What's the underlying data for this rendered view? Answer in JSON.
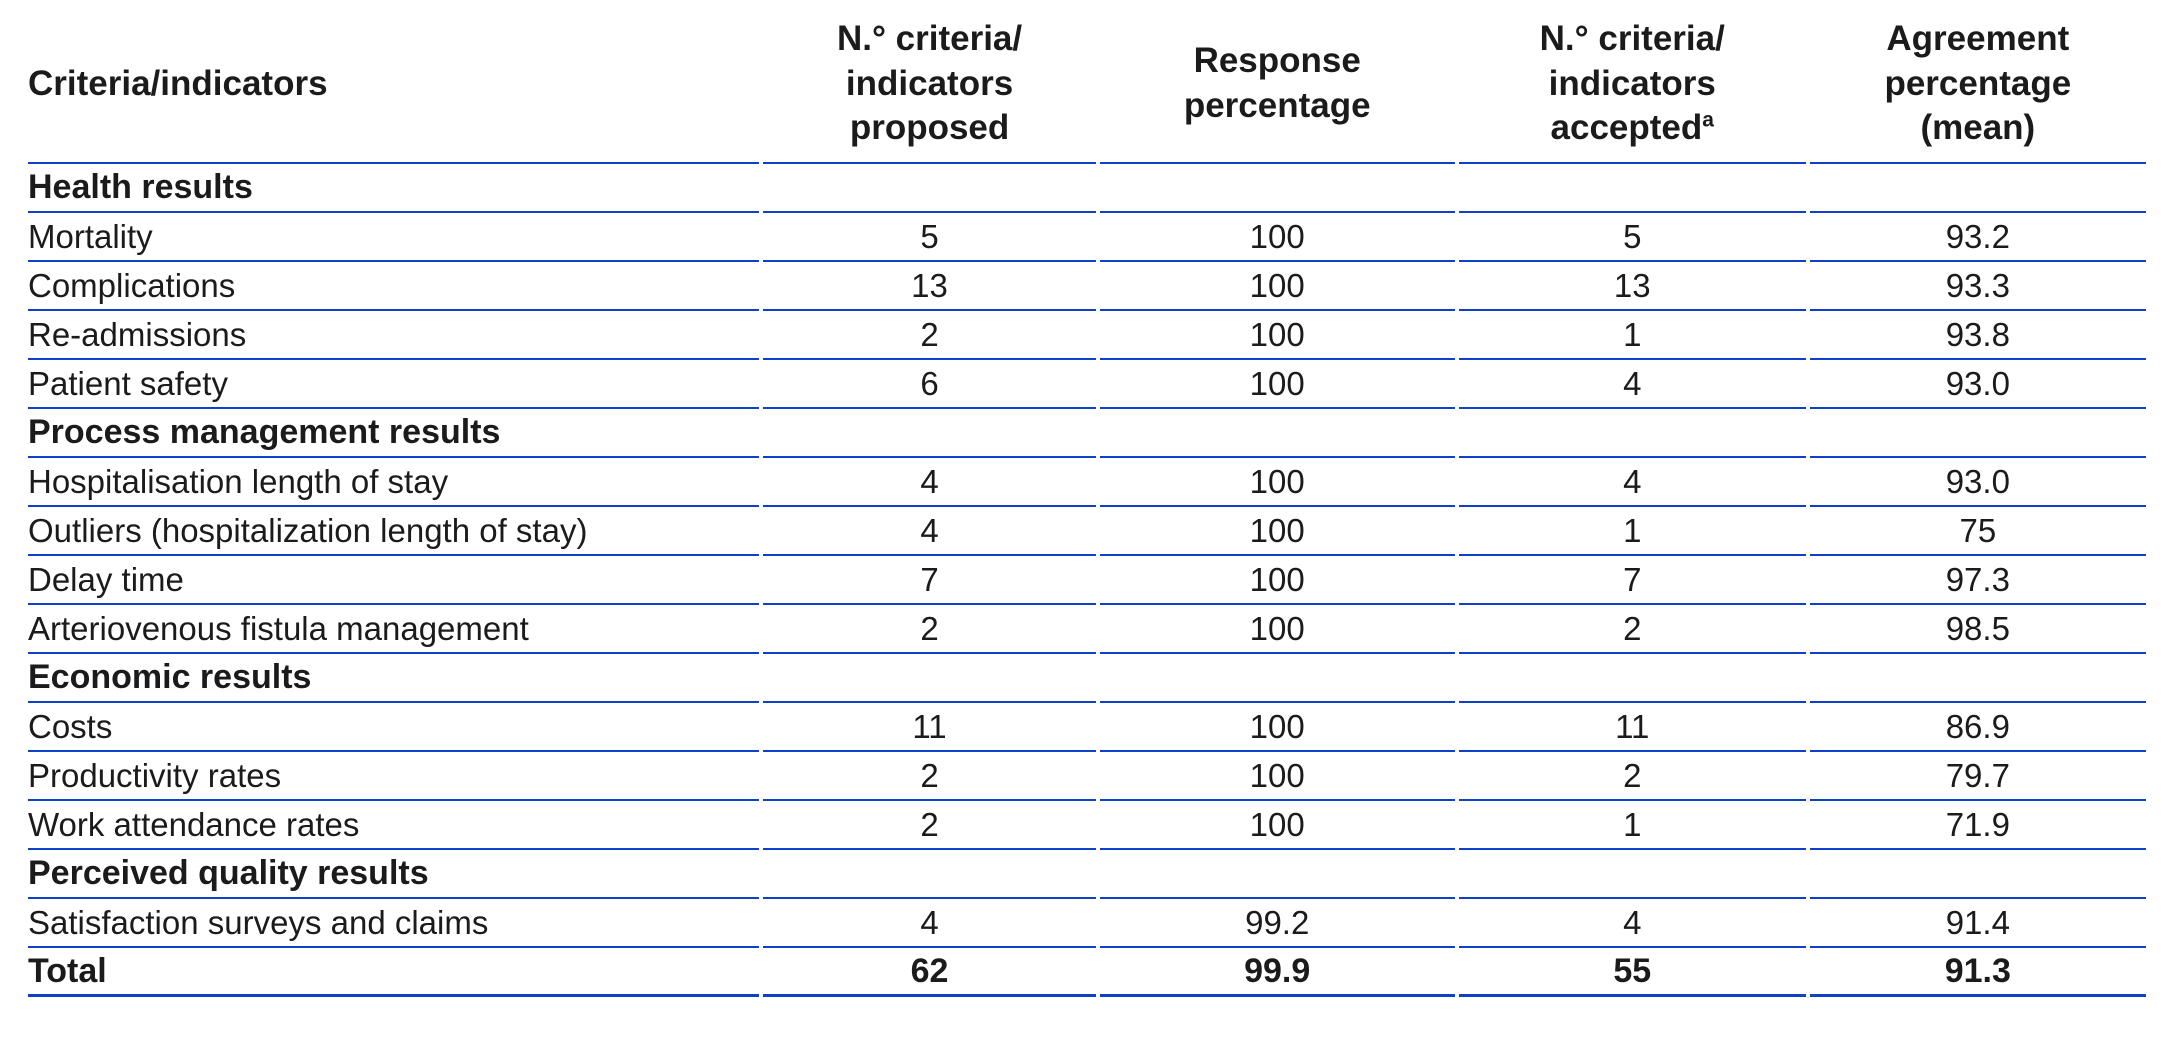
{
  "table": {
    "columns": [
      {
        "label": "Criteria/indicators"
      },
      {
        "label": "N.° criteria/\nindicators\nproposed"
      },
      {
        "label": "Response\npercentage"
      },
      {
        "label": "N.° criteria/\nindicators\naccepted",
        "sup": "a"
      },
      {
        "label": "Agreement\npercentage\n(mean)"
      }
    ],
    "rows": [
      {
        "type": "section",
        "label": "Health results"
      },
      {
        "type": "data",
        "label": "Mortality",
        "proposed": "5",
        "response": "100",
        "accepted": "5",
        "agreement": "93.2"
      },
      {
        "type": "data",
        "label": "Complications",
        "proposed": "13",
        "response": "100",
        "accepted": "13",
        "agreement": "93.3"
      },
      {
        "type": "data",
        "label": "Re-admissions",
        "proposed": "2",
        "response": "100",
        "accepted": "1",
        "agreement": "93.8"
      },
      {
        "type": "data",
        "label": "Patient safety",
        "proposed": "6",
        "response": "100",
        "accepted": "4",
        "agreement": "93.0"
      },
      {
        "type": "section",
        "label": "Process management results"
      },
      {
        "type": "data",
        "label": "Hospitalisation length of stay",
        "proposed": "4",
        "response": "100",
        "accepted": "4",
        "agreement": "93.0"
      },
      {
        "type": "data",
        "label": "Outliers (hospitalization length of stay)",
        "proposed": "4",
        "response": "100",
        "accepted": "1",
        "agreement": "75"
      },
      {
        "type": "data",
        "label": "Delay time",
        "proposed": "7",
        "response": "100",
        "accepted": "7",
        "agreement": "97.3"
      },
      {
        "type": "data",
        "label": "Arteriovenous fistula management",
        "proposed": "2",
        "response": "100",
        "accepted": "2",
        "agreement": "98.5"
      },
      {
        "type": "section",
        "label": "Economic results"
      },
      {
        "type": "data",
        "label": "Costs",
        "proposed": "11",
        "response": "100",
        "accepted": "11",
        "agreement": "86.9"
      },
      {
        "type": "data",
        "label": "Productivity rates",
        "proposed": "2",
        "response": "100",
        "accepted": "2",
        "agreement": "79.7"
      },
      {
        "type": "data",
        "label": "Work attendance rates",
        "proposed": "2",
        "response": "100",
        "accepted": "1",
        "agreement": "71.9"
      },
      {
        "type": "section",
        "label": "Perceived quality results"
      },
      {
        "type": "data",
        "label": "Satisfaction surveys and claims",
        "proposed": "4",
        "response": "99.2",
        "accepted": "4",
        "agreement": "91.4"
      },
      {
        "type": "total",
        "label": "Total",
        "proposed": "62",
        "response": "99.9",
        "accepted": "55",
        "agreement": "91.3"
      }
    ],
    "colors": {
      "rule_blue": "#0c41c8",
      "text": "#1b1b1b"
    }
  }
}
